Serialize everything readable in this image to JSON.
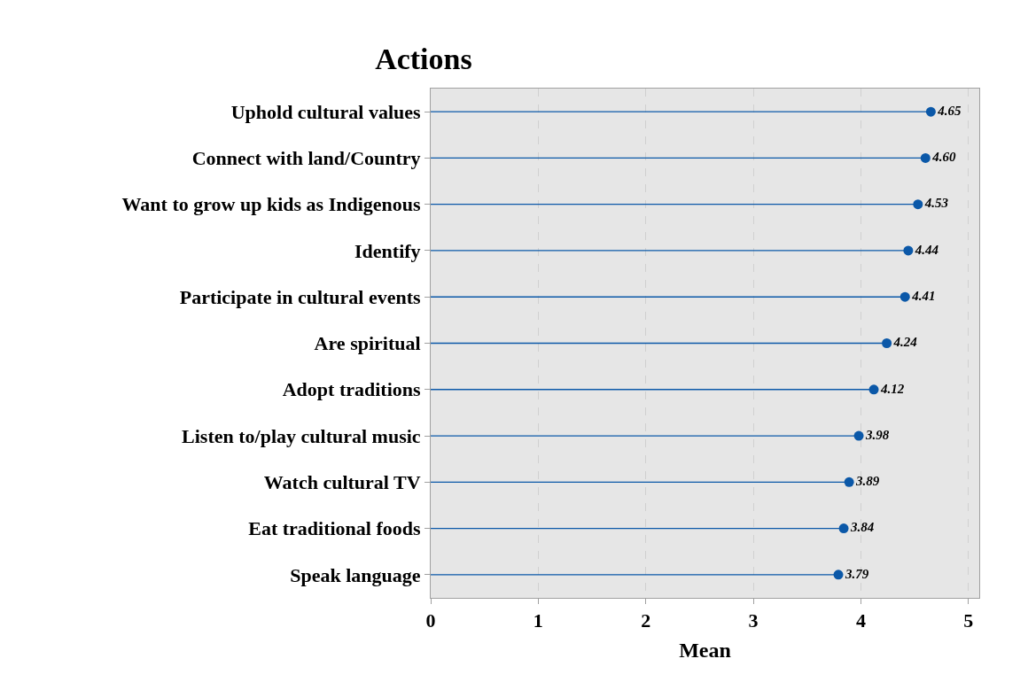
{
  "chart_data": {
    "type": "lollipop",
    "title": "Actions",
    "xlabel": "Mean",
    "orientation": "horizontal",
    "categories": [
      "Uphold cultural values",
      "Connect with land/Country",
      "Want to grow up kids as Indigenous",
      "Identify",
      "Participate in cultural events",
      "Are spiritual",
      "Adopt traditions",
      "Listen to/play cultural music",
      "Watch cultural TV",
      "Eat traditional foods",
      "Speak language"
    ],
    "values": [
      4.65,
      4.6,
      4.53,
      4.44,
      4.41,
      4.24,
      4.12,
      3.98,
      3.89,
      3.84,
      3.79
    ],
    "value_labels": [
      "4.65",
      "4.60",
      "4.53",
      "4.44",
      "4.41",
      "4.24",
      "4.12",
      "3.98",
      "3.89",
      "3.84",
      "3.79"
    ],
    "color": "#0b58a8",
    "marker": "circle",
    "xlim": [
      0,
      5.1
    ],
    "xticks": [
      0,
      1,
      2,
      3,
      4,
      5
    ],
    "grid": "x"
  }
}
